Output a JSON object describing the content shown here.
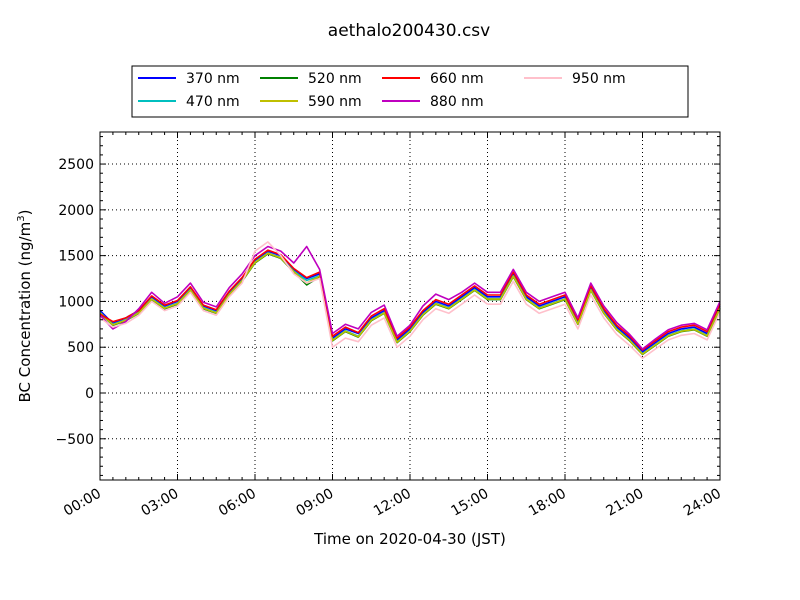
{
  "chart_data": {
    "type": "line",
    "title": "aethalo200430.csv",
    "xlabel": "Time on 2020-04-30 (JST)",
    "ylabel_main": "BC Concentration (ng/m",
    "ylabel_sup": "3",
    "ylabel_tail": ")",
    "xlim_hours": [
      0,
      24
    ],
    "ylim": [
      -950,
      2850
    ],
    "grid": true,
    "legend_position": "top-center",
    "x_ticks": [
      {
        "hour": 0,
        "label": "00:00"
      },
      {
        "hour": 3,
        "label": "03:00"
      },
      {
        "hour": 6,
        "label": "06:00"
      },
      {
        "hour": 9,
        "label": "09:00"
      },
      {
        "hour": 12,
        "label": "12:00"
      },
      {
        "hour": 15,
        "label": "15:00"
      },
      {
        "hour": 18,
        "label": "18:00"
      },
      {
        "hour": 21,
        "label": "21:00"
      },
      {
        "hour": 24,
        "label": "24:00"
      }
    ],
    "y_ticks": [
      {
        "value": -500,
        "label": "−500"
      },
      {
        "value": 0,
        "label": "0"
      },
      {
        "value": 500,
        "label": "500"
      },
      {
        "value": 1000,
        "label": "1000"
      },
      {
        "value": 1500,
        "label": "1500"
      },
      {
        "value": 2000,
        "label": "2000"
      },
      {
        "value": 2500,
        "label": "2500"
      }
    ],
    "hours": [
      0,
      0.5,
      1,
      1.5,
      2,
      2.5,
      3,
      3.5,
      4,
      4.5,
      5,
      5.5,
      6,
      6.5,
      7,
      7.5,
      8,
      8.5,
      9,
      9.5,
      10,
      10.5,
      11,
      11.5,
      12,
      12.5,
      13,
      13.5,
      14,
      14.5,
      15,
      15.5,
      16,
      16.5,
      17,
      17.5,
      18,
      18.5,
      19,
      19.5,
      20,
      20.5,
      21,
      21.5,
      22,
      22.5,
      23,
      23.5,
      24
    ],
    "series": [
      {
        "name": "370 nm",
        "color": "#0000ff",
        "values": [
          900,
          760,
          820,
          900,
          1050,
          950,
          1000,
          1150,
          950,
          900,
          1100,
          1250,
          1450,
          1550,
          1500,
          1350,
          1250,
          1300,
          600,
          700,
          650,
          820,
          900,
          580,
          700,
          880,
          1000,
          950,
          1050,
          1150,
          1050,
          1050,
          1300,
          1050,
          950,
          1000,
          1050,
          780,
          1150,
          900,
          720,
          600,
          450,
          550,
          650,
          700,
          720,
          650,
          950
        ]
      },
      {
        "name": "470 nm",
        "color": "#00bfbf",
        "values": [
          880,
          750,
          800,
          880,
          1030,
          930,
          980,
          1130,
          930,
          880,
          1080,
          1230,
          1430,
          1530,
          1480,
          1330,
          1230,
          1280,
          580,
          680,
          620,
          800,
          880,
          560,
          680,
          860,
          980,
          930,
          1030,
          1130,
          1030,
          1030,
          1280,
          1030,
          930,
          980,
          1030,
          760,
          1130,
          880,
          700,
          580,
          430,
          530,
          630,
          680,
          700,
          630,
          930
        ]
      },
      {
        "name": "520 nm",
        "color": "#008000",
        "values": [
          870,
          740,
          790,
          870,
          1020,
          920,
          970,
          1120,
          920,
          870,
          1070,
          1220,
          1420,
          1520,
          1470,
          1320,
          1180,
          1270,
          570,
          670,
          610,
          790,
          870,
          550,
          670,
          850,
          970,
          920,
          1020,
          1120,
          1020,
          1020,
          1270,
          1020,
          920,
          970,
          1020,
          750,
          1120,
          870,
          690,
          570,
          420,
          520,
          620,
          670,
          690,
          620,
          920
        ]
      },
      {
        "name": "590 nm",
        "color": "#bfbf00",
        "values": [
          875,
          745,
          795,
          875,
          1025,
          925,
          975,
          1125,
          925,
          875,
          1075,
          1225,
          1425,
          1525,
          1475,
          1325,
          1200,
          1275,
          575,
          675,
          615,
          795,
          875,
          555,
          675,
          855,
          975,
          925,
          1025,
          1125,
          1025,
          1025,
          1275,
          1025,
          925,
          975,
          1025,
          755,
          1125,
          875,
          695,
          575,
          425,
          525,
          625,
          675,
          695,
          625,
          925
        ]
      },
      {
        "name": "660 nm",
        "color": "#ff0000",
        "values": [
          860,
          780,
          820,
          900,
          1060,
          960,
          1010,
          1160,
          960,
          910,
          1110,
          1260,
          1460,
          1560,
          1510,
          1360,
          1260,
          1320,
          620,
          720,
          660,
          840,
          920,
          600,
          720,
          900,
          1020,
          970,
          1070,
          1170,
          1070,
          1070,
          1320,
          1070,
          970,
          1020,
          1070,
          800,
          1170,
          920,
          740,
          620,
          470,
          570,
          670,
          720,
          740,
          670,
          970
        ]
      },
      {
        "name": "880 nm",
        "color": "#bf00bf",
        "values": [
          850,
          700,
          780,
          920,
          1100,
          980,
          1050,
          1200,
          990,
          940,
          1150,
          1300,
          1500,
          1600,
          1550,
          1420,
          1600,
          1350,
          650,
          750,
          700,
          880,
          960,
          620,
          740,
          950,
          1080,
          1020,
          1100,
          1200,
          1100,
          1100,
          1350,
          1100,
          1000,
          1050,
          1100,
          820,
          1200,
          950,
          770,
          640,
          480,
          590,
          690,
          740,
          760,
          690,
          1000
        ]
      },
      {
        "name": "950 nm",
        "color": "#ffc0cb",
        "values": [
          820,
          720,
          760,
          850,
          1000,
          900,
          950,
          1100,
          900,
          850,
          1050,
          1200,
          1550,
          1650,
          1500,
          1300,
          1200,
          1250,
          500,
          600,
          560,
          740,
          820,
          500,
          620,
          800,
          920,
          870,
          970,
          1070,
          970,
          970,
          1220,
          970,
          870,
          920,
          970,
          700,
          1070,
          820,
          640,
          520,
          380,
          480,
          580,
          630,
          650,
          580,
          880
        ]
      }
    ]
  }
}
